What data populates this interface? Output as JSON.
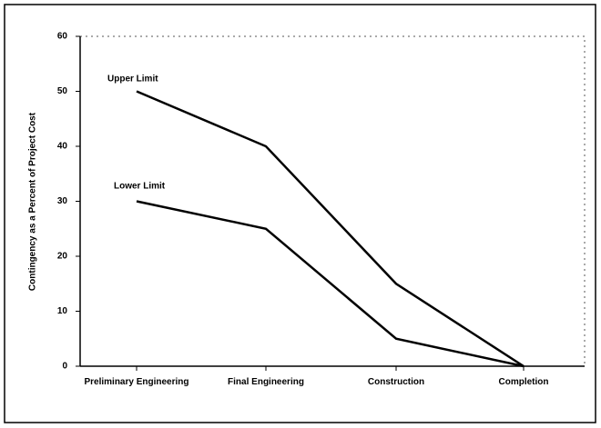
{
  "chart_data": {
    "type": "line",
    "y_label": "Contingency as a Percent of Project Cost",
    "categories": [
      "Preliminary Engineering",
      "Final Engineering",
      "Construction",
      "Completion"
    ],
    "series": [
      {
        "name": "Upper Limit",
        "color": "#000000",
        "values": [
          50,
          40,
          15,
          0
        ]
      },
      {
        "name": "Lower Limit",
        "color": "#000000",
        "values": [
          30,
          25,
          5,
          0
        ]
      }
    ],
    "ylim": [
      0,
      60
    ],
    "yticks": [
      0,
      10,
      20,
      30,
      40,
      50,
      60
    ]
  }
}
